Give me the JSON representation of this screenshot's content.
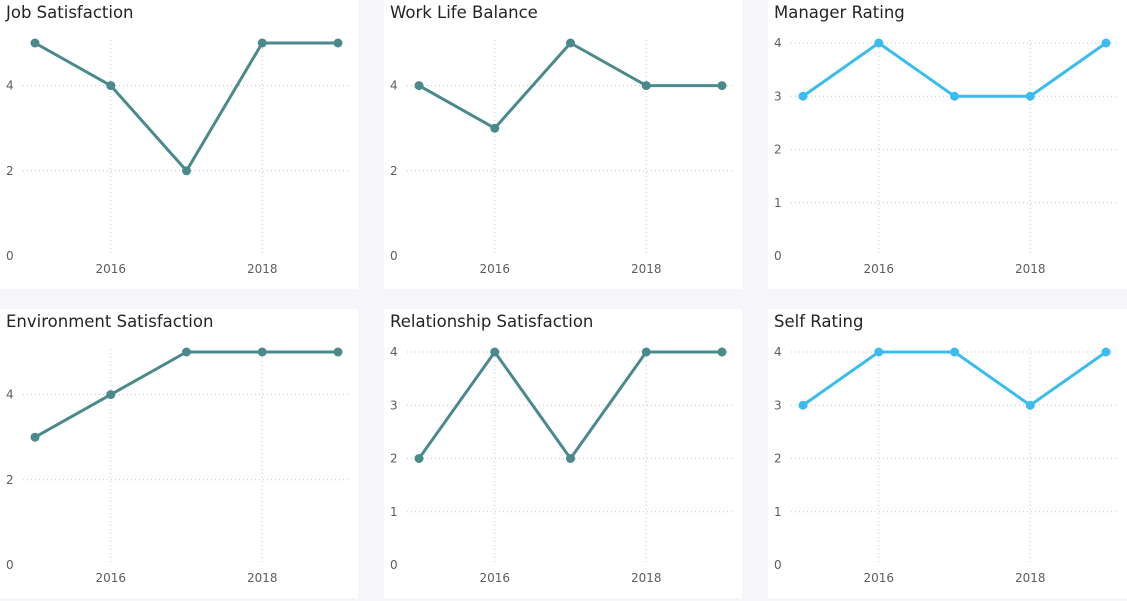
{
  "chart_data": [
    {
      "type": "line",
      "title": "Job Satisfaction",
      "x": [
        2015,
        2016,
        2017,
        2018,
        2019
      ],
      "xticks": [
        2016,
        2018
      ],
      "values": [
        5,
        4,
        2,
        5,
        5
      ],
      "yticks": [
        0,
        2,
        4
      ],
      "ylim": [
        0,
        5
      ],
      "xlabel": "",
      "ylabel": "",
      "color": "#4a8a8c",
      "grid": true
    },
    {
      "type": "line",
      "title": "Work Life Balance",
      "x": [
        2015,
        2016,
        2017,
        2018,
        2019
      ],
      "xticks": [
        2016,
        2018
      ],
      "values": [
        4,
        3,
        5,
        4,
        4
      ],
      "yticks": [
        0,
        2,
        4
      ],
      "ylim": [
        0,
        5
      ],
      "xlabel": "",
      "ylabel": "",
      "color": "#4a8a8c",
      "grid": true
    },
    {
      "type": "line",
      "title": "Manager Rating",
      "x": [
        2015,
        2016,
        2017,
        2018,
        2019
      ],
      "xticks": [
        2016,
        2018
      ],
      "values": [
        3,
        4,
        3,
        3,
        4
      ],
      "yticks": [
        0,
        1,
        2,
        3,
        4
      ],
      "ylim": [
        0,
        4
      ],
      "xlabel": "",
      "ylabel": "",
      "color": "#3bbcf0",
      "grid": true
    },
    {
      "type": "line",
      "title": "Environment Satisfaction",
      "x": [
        2015,
        2016,
        2017,
        2018,
        2019
      ],
      "xticks": [
        2016,
        2018
      ],
      "values": [
        3,
        4,
        5,
        5,
        5
      ],
      "yticks": [
        0,
        2,
        4
      ],
      "ylim": [
        0,
        5
      ],
      "xlabel": "",
      "ylabel": "",
      "color": "#4a8a8c",
      "grid": true
    },
    {
      "type": "line",
      "title": "Relationship Satisfaction",
      "x": [
        2015,
        2016,
        2017,
        2018,
        2019
      ],
      "xticks": [
        2016,
        2018
      ],
      "values": [
        2,
        4,
        2,
        4,
        4
      ],
      "yticks": [
        0,
        1,
        2,
        3,
        4
      ],
      "ylim": [
        0,
        4
      ],
      "xlabel": "",
      "ylabel": "",
      "color": "#4a8a8c",
      "grid": true
    },
    {
      "type": "line",
      "title": "Self Rating",
      "x": [
        2015,
        2016,
        2017,
        2018,
        2019
      ],
      "xticks": [
        2016,
        2018
      ],
      "values": [
        3,
        4,
        4,
        3,
        4
      ],
      "yticks": [
        0,
        1,
        2,
        3,
        4
      ],
      "ylim": [
        0,
        4
      ],
      "xlabel": "",
      "ylabel": "",
      "color": "#3bbcf0",
      "grid": true
    }
  ]
}
